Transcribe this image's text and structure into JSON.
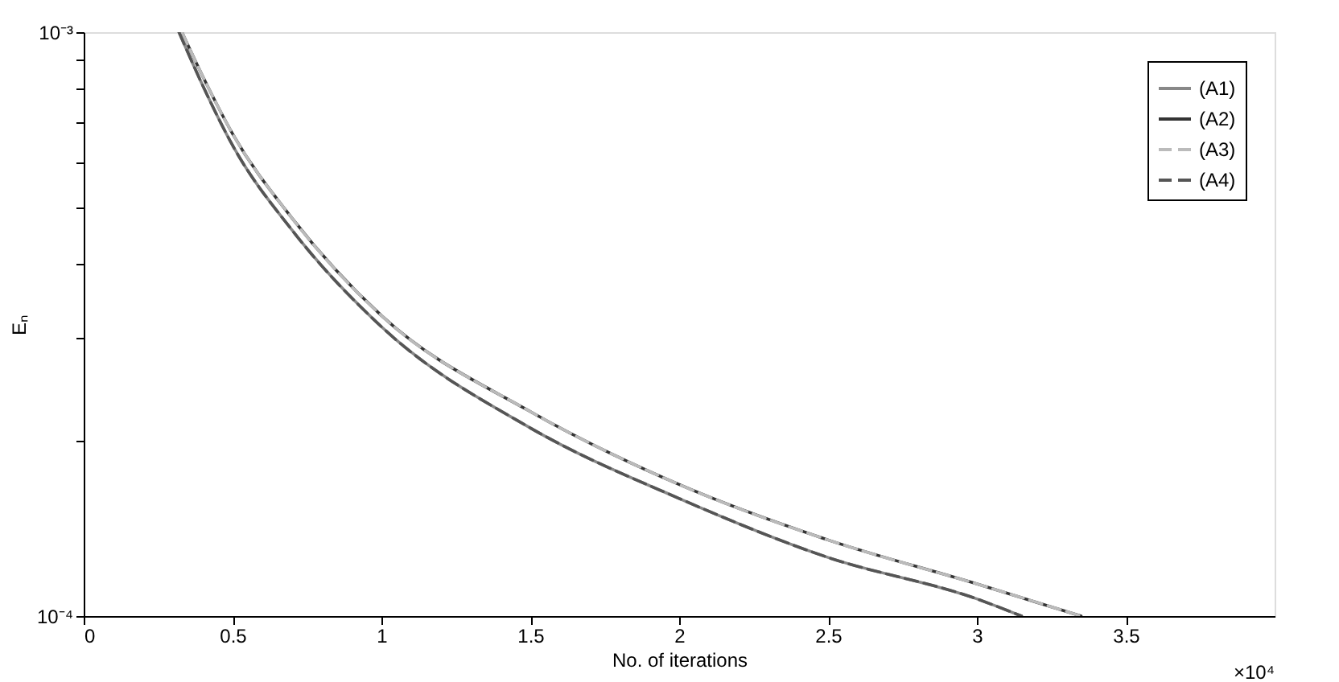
{
  "chart_data": {
    "type": "line",
    "xlabel": "No. of iterations",
    "ylabel": "Eₙ",
    "log": "y",
    "grid": false,
    "legend": "top right",
    "xlim": [
      0,
      4
    ],
    "xticks": [
      0,
      0.5,
      1,
      1.5,
      2,
      2.5,
      3,
      3.5
    ],
    "ylim": [
      0.0001,
      0.001
    ],
    "yticks": [
      {
        "value": 0.0001,
        "label": "10⁻⁴"
      },
      {
        "value": 0.0002,
        "label": null
      },
      {
        "value": 0.0003,
        "label": null
      },
      {
        "value": 0.0004,
        "label": null
      },
      {
        "value": 0.0005,
        "label": null
      },
      {
        "value": 0.0006,
        "label": null
      },
      {
        "value": 0.0007,
        "label": null
      },
      {
        "value": 0.0008,
        "label": null
      },
      {
        "value": 0.0009,
        "label": null
      },
      {
        "value": 0.001,
        "label": "10⁻³"
      }
    ],
    "annotations": [
      "×10⁴"
    ],
    "series": [
      {
        "name": "(A1)",
        "color": "#888888",
        "line_style": "solid",
        "x": [
          0.32,
          0.4,
          0.5,
          0.7,
          1,
          1.5,
          2,
          2.5,
          3,
          3.15
        ],
        "values": [
          0.001,
          0.00081,
          0.00064,
          0.000458,
          0.000313,
          0.00021,
          0.000159,
          0.000126,
          0.000107,
          0.0001
        ]
      },
      {
        "name": "(A2)",
        "color": "#333333",
        "line_style": "solid",
        "x": [
          0.33,
          0.4,
          0.5,
          0.7,
          1,
          1.5,
          2,
          2.5,
          3,
          3.35
        ],
        "values": [
          0.001,
          0.00084,
          0.00067,
          0.00048,
          0.000327,
          0.000224,
          0.000168,
          0.000135,
          0.0001135,
          0.0001
        ]
      },
      {
        "name": "(A3)",
        "color": "#bbbbbb",
        "line_style": "dashed",
        "x": [
          0.33,
          0.4,
          0.5,
          0.7,
          1,
          1.5,
          2,
          2.5,
          3,
          3.35
        ],
        "values": [
          0.001,
          0.00084,
          0.00067,
          0.00048,
          0.000327,
          0.000224,
          0.000168,
          0.000135,
          0.0001135,
          0.0001
        ]
      },
      {
        "name": "(A4)",
        "color": "#555555",
        "line_style": "dashed",
        "x": [
          0.32,
          0.4,
          0.5,
          0.7,
          1,
          1.5,
          2,
          2.5,
          3,
          3.15
        ],
        "values": [
          0.001,
          0.00081,
          0.00064,
          0.000458,
          0.000313,
          0.00021,
          0.000159,
          0.000126,
          0.000107,
          0.0001
        ]
      }
    ]
  }
}
